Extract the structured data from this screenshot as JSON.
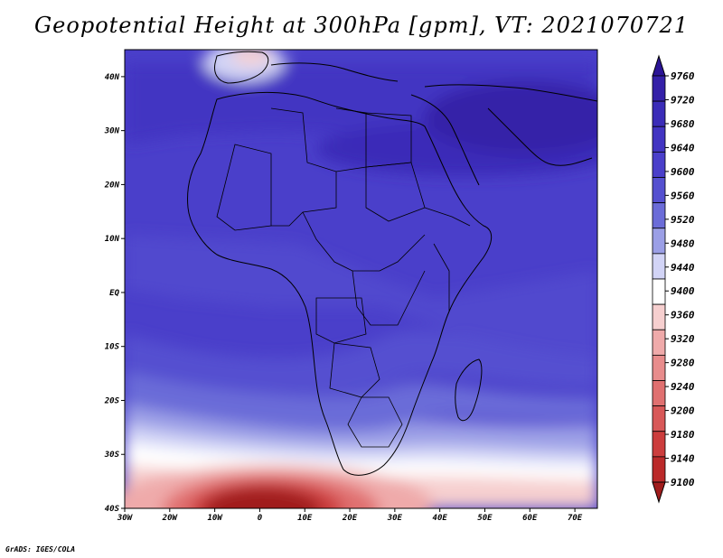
{
  "title": "Geopotential Height at 300hPa [gpm], VT: 2021070721",
  "credit": "GrADS: IGES/COLA",
  "map": {
    "lon_range": [
      -30,
      75
    ],
    "lat_range": [
      -40,
      45
    ],
    "lat_ticks": [
      "40N",
      "30N",
      "20N",
      "10N",
      "EQ",
      "10S",
      "20S",
      "30S",
      "40S"
    ],
    "lon_ticks": [
      "30W",
      "20W",
      "10W",
      "0",
      "10E",
      "20E",
      "30E",
      "40E",
      "50E",
      "60E",
      "70E"
    ]
  },
  "colorbar": {
    "levels": [
      "9760",
      "9720",
      "9680",
      "9640",
      "9600",
      "9560",
      "9520",
      "9480",
      "9440",
      "9400",
      "9360",
      "9320",
      "9280",
      "9240",
      "9200",
      "9180",
      "9140",
      "9100"
    ],
    "colors": [
      "#2b1496",
      "#3420a8",
      "#3b2cb8",
      "#4234c2",
      "#4a3fca",
      "#5550d0",
      "#6b6cd8",
      "#9b9fe6",
      "#d2d4f6",
      "#ffffff",
      "#f6cfcf",
      "#efaaaa",
      "#e88c8c",
      "#e07070",
      "#d85858",
      "#cc3d3d",
      "#bb2a2a",
      "#a01c1c"
    ]
  }
}
